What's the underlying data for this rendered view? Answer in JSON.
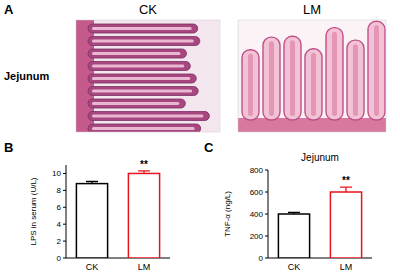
{
  "panels": [
    {
      "label": "A",
      "type": "image",
      "row_label": "Jejunum",
      "columns": [
        "CK",
        "LM"
      ]
    },
    {
      "label": "B"
    },
    {
      "label": "C"
    }
  ],
  "chart_data": [
    {
      "type": "bar",
      "y_label": "LPS in serum (U/L)",
      "categories": [
        "CK",
        "LM"
      ],
      "values": [
        8.8,
        10.0
      ],
      "errors": [
        0.25,
        0.3
      ],
      "colors": [
        "#000000",
        "#e8141b"
      ],
      "ylim": [
        0,
        11
      ],
      "yticks": [
        0,
        2,
        4,
        6,
        8,
        10
      ],
      "annotations": [
        {
          "text": "**",
          "x": "LM"
        }
      ]
    },
    {
      "type": "bar",
      "title": "Jejunum",
      "y_label": "TNF-α (ng/L)",
      "categories": [
        "CK",
        "LM"
      ],
      "values": [
        400,
        600
      ],
      "errors": [
        15,
        45
      ],
      "colors": [
        "#000000",
        "#e8141b"
      ],
      "ylim": [
        0,
        800
      ],
      "yticks": [
        0,
        200,
        400,
        600,
        800
      ],
      "annotations": [
        {
          "text": "**",
          "x": "LM"
        }
      ]
    }
  ]
}
